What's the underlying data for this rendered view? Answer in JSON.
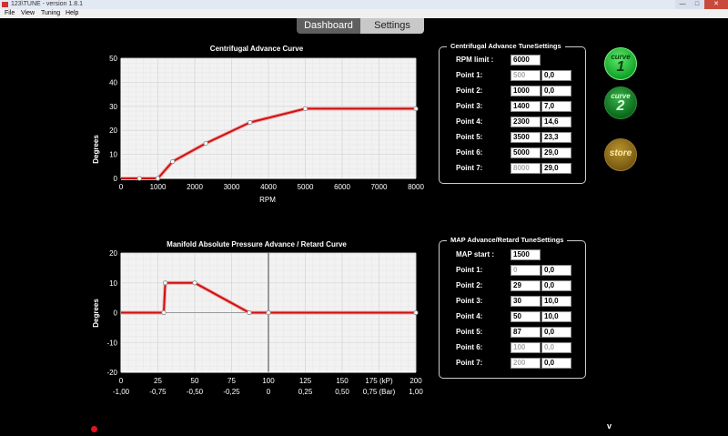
{
  "window": {
    "title": "123\\TUNE - version 1.8.1",
    "min": "—",
    "max": "□",
    "close": "✕"
  },
  "menu": [
    "File",
    "View",
    "Tuning",
    "Help"
  ],
  "tabs": {
    "dashboard": "Dashboard",
    "settings": "Settings"
  },
  "colors": {
    "curve": "#cc1111",
    "grid": "#d8d8d8",
    "plot_bg": "#f2f2f2"
  },
  "centrifugal": {
    "legend": "Centrifugal Advance TuneSettings",
    "rpm_limit_label": "RPM limit :",
    "rpm_limit": "6000",
    "points": [
      {
        "label": "Point 1:",
        "rpm": "500",
        "deg": "0,0",
        "disabled": true
      },
      {
        "label": "Point 2:",
        "rpm": "1000",
        "deg": "0,0",
        "disabled": false
      },
      {
        "label": "Point 3:",
        "rpm": "1400",
        "deg": "7,0",
        "disabled": false
      },
      {
        "label": "Point 4:",
        "rpm": "2300",
        "deg": "14,6",
        "disabled": false
      },
      {
        "label": "Point 5:",
        "rpm": "3500",
        "deg": "23,3",
        "disabled": false
      },
      {
        "label": "Point 6:",
        "rpm": "5000",
        "deg": "29,0",
        "disabled": false
      },
      {
        "label": "Point 7:",
        "rpm": "8000",
        "deg": "29,0",
        "disabled": true
      }
    ]
  },
  "map": {
    "legend": "MAP Advance/Retard TuneSettings",
    "start_label": "MAP start :",
    "start": "1500",
    "points": [
      {
        "label": "Point 1:",
        "kpa": "0",
        "deg": "0,0",
        "disabled_kpa": true,
        "disabled_deg": false
      },
      {
        "label": "Point 2:",
        "kpa": "29",
        "deg": "0,0",
        "disabled_kpa": false,
        "disabled_deg": false
      },
      {
        "label": "Point 3:",
        "kpa": "30",
        "deg": "10,0",
        "disabled_kpa": false,
        "disabled_deg": false
      },
      {
        "label": "Point 4:",
        "kpa": "50",
        "deg": "10,0",
        "disabled_kpa": false,
        "disabled_deg": false
      },
      {
        "label": "Point 5:",
        "kpa": "87",
        "deg": "0,0",
        "disabled_kpa": false,
        "disabled_deg": false
      },
      {
        "label": "Point 6:",
        "kpa": "100",
        "deg": "0,0",
        "disabled_kpa": true,
        "disabled_deg": true
      },
      {
        "label": "Point 7:",
        "kpa": "200",
        "deg": "0,0",
        "disabled_kpa": true,
        "disabled_deg": false
      }
    ]
  },
  "buttons": {
    "curve1_word": "curve",
    "curve1_num": "1",
    "curve2_word": "curve",
    "curve2_num": "2",
    "store": "store"
  },
  "status": {
    "v": "v"
  },
  "chart_data": [
    {
      "type": "line",
      "title": "Centrifugal Advance Curve",
      "xlabel": "RPM",
      "ylabel": "Degrees",
      "xlim": [
        0,
        8000
      ],
      "ylim": [
        0,
        50
      ],
      "xticks": [
        0,
        1000,
        2000,
        3000,
        4000,
        5000,
        6000,
        7000,
        8000
      ],
      "yticks": [
        0,
        10,
        20,
        30,
        40,
        50
      ],
      "grid": true,
      "x": [
        500,
        1000,
        1400,
        2300,
        3500,
        5000,
        8000
      ],
      "y": [
        0,
        0,
        7,
        14.6,
        23.3,
        29,
        29
      ],
      "lead_in": [
        0,
        500
      ]
    },
    {
      "type": "line",
      "title": "Manifold Absolute Pressure Advance / Retard Curve",
      "xlabel": "",
      "ylabel": "Degrees",
      "xlim": [
        0,
        200
      ],
      "ylim": [
        -20,
        20
      ],
      "xticks": [
        0,
        25,
        50,
        75,
        100,
        125,
        150,
        175,
        200
      ],
      "xtick_labels": [
        "0",
        "25",
        "50",
        "75",
        "100",
        "125",
        "150",
        "175 (kP)",
        "200"
      ],
      "xticks2_labels": [
        "-1,00",
        "-0,75",
        "-0,50",
        "-0,25",
        "0",
        "0,25",
        "0,50",
        "0,75 (Bar)",
        "1,00"
      ],
      "yticks": [
        -20,
        -10,
        0,
        10,
        20
      ],
      "grid": true,
      "x": [
        29,
        30,
        50,
        87,
        100,
        200
      ],
      "y": [
        0,
        10,
        10,
        0,
        0,
        0
      ],
      "lead_in": [
        0,
        29
      ],
      "zero_line_x": 100
    }
  ]
}
